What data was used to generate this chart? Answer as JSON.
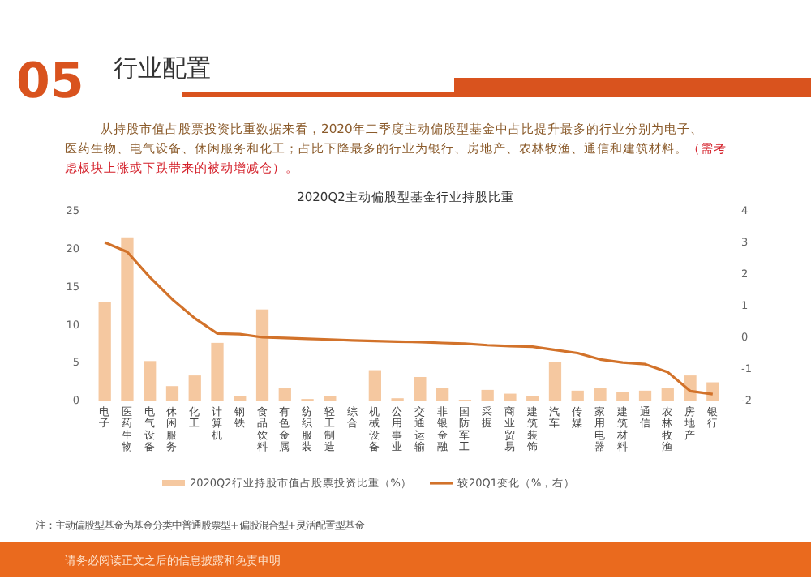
{
  "chart_data": {
    "type": "bar",
    "title": "2020Q2主动偏股型基金行业持股比重",
    "categories": [
      "电子",
      "医药生物",
      "电气设备",
      "休闲服务",
      "化工",
      "计算机",
      "钢铁",
      "食品饮料",
      "有色金属",
      "纺织服装",
      "轻工制造",
      "综合",
      "机械设备",
      "公用事业",
      "交通运输",
      "非银金融",
      "国防军工",
      "采掘",
      "商业贸易",
      "建筑装饰",
      "汽车",
      "传媒",
      "家用电器",
      "建筑材料",
      "通信",
      "农林牧渔",
      "房地产",
      "银行"
    ],
    "series": [
      {
        "name": "2020Q2行业持股市值占股票投资比重（%）",
        "color": "#f5c8a0",
        "values": [
          13,
          21.5,
          5.2,
          1.9,
          3.3,
          7.6,
          0.6,
          12,
          1.6,
          0.2,
          0.6,
          0,
          4.0,
          0.3,
          3.1,
          1.7,
          0.1,
          1.4,
          0.9,
          0.6,
          5.1,
          1.3,
          1.6,
          1.1,
          1.3,
          1.6,
          3.3,
          2.4
        ]
      },
      {
        "name": "较20Q1变化（%，右）",
        "type": "line",
        "axis": "y2",
        "color": "#d2722a",
        "values": [
          3.0,
          2.7,
          1.9,
          1.2,
          0.6,
          0.12,
          0.1,
          0.0,
          -0.02,
          -0.05,
          -0.07,
          -0.1,
          -0.12,
          -0.14,
          -0.15,
          -0.18,
          -0.2,
          -0.25,
          -0.28,
          -0.3,
          -0.4,
          -0.5,
          -0.7,
          -0.8,
          -0.85,
          -1.1,
          -1.7,
          -1.8
        ]
      }
    ],
    "ylim": [
      0,
      25
    ],
    "yticks": [
      0,
      5,
      10,
      15,
      20,
      25
    ],
    "y2lim": [
      -2,
      4
    ],
    "y2ticks": [
      -2,
      -1,
      0,
      1,
      2,
      3,
      4
    ],
    "legend": "bottom",
    "grid": false,
    "annotations": [
      "05",
      "行业配置",
      "从持股市值占股票投资比重数据来看，2020年二季度主动偏股型基金中占比提升最多的行业分别为电子、医药生物、电气设备、休闲服务和化工；占比下降最多的行业为银行、房地产、农林牧渔、通信和建筑材料。",
      "（需考虑板块上涨或下跌带来的被动增减仓）。",
      "注：主动偏股型基金为基金分类中普通股票型+偏股混合型+灵活配置型基金",
      "请务必阅读正文之后的信息披露和免责申明"
    ]
  }
}
